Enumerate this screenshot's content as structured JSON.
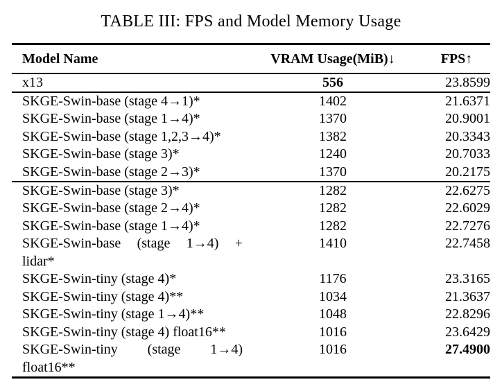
{
  "title": "TABLE III: FPS and Model Memory Usage",
  "header": {
    "model": "Model Name",
    "vram": "VRAM Usage(MiB)↓",
    "fps": "FPS↑"
  },
  "rows": [
    {
      "model": "x13",
      "model2": "",
      "vram": "556",
      "fps": "23.8599",
      "vram_bold": true,
      "fps_bold": false,
      "rule_after": true
    },
    {
      "model": "SKGE-Swin-base (stage 4→1)*",
      "model2": "",
      "vram": "1402",
      "fps": "21.6371",
      "vram_bold": false,
      "fps_bold": false,
      "rule_after": false
    },
    {
      "model": "SKGE-Swin-base (stage 1→4)*",
      "model2": "",
      "vram": "1370",
      "fps": "20.9001",
      "vram_bold": false,
      "fps_bold": false,
      "rule_after": false
    },
    {
      "model": "SKGE-Swin-base (stage 1,2,3→4)*",
      "model2": "",
      "vram": "1382",
      "fps": "20.3343",
      "vram_bold": false,
      "fps_bold": false,
      "rule_after": false
    },
    {
      "model": "SKGE-Swin-base (stage 3)*",
      "model2": "",
      "vram": "1240",
      "fps": "20.7033",
      "vram_bold": false,
      "fps_bold": false,
      "rule_after": false
    },
    {
      "model": "SKGE-Swin-base (stage 2→3)*",
      "model2": "",
      "vram": "1370",
      "fps": "20.2175",
      "vram_bold": false,
      "fps_bold": false,
      "rule_after": true
    },
    {
      "model": "SKGE-Swin-base (stage 3)*",
      "model2": "",
      "vram": "1282",
      "fps": "22.6275",
      "vram_bold": false,
      "fps_bold": false,
      "rule_after": false
    },
    {
      "model": "SKGE-Swin-base (stage 2→4)*",
      "model2": "",
      "vram": "1282",
      "fps": "22.6029",
      "vram_bold": false,
      "fps_bold": false,
      "rule_after": false
    },
    {
      "model": "SKGE-Swin-base (stage 1→4)*",
      "model2": "",
      "vram": "1282",
      "fps": "22.7276",
      "vram_bold": false,
      "fps_bold": false,
      "rule_after": false
    },
    {
      "model": "SKGE-Swin-base (stage 1→4) +",
      "model2": "lidar*",
      "vram": "1410",
      "fps": "22.7458",
      "vram_bold": false,
      "fps_bold": false,
      "rule_after": false
    },
    {
      "model": "SKGE-Swin-tiny (stage 4)*",
      "model2": "",
      "vram": "1176",
      "fps": "23.3165",
      "vram_bold": false,
      "fps_bold": false,
      "rule_after": false
    },
    {
      "model": "SKGE-Swin-tiny (stage 4)**",
      "model2": "",
      "vram": "1034",
      "fps": "21.3637",
      "vram_bold": false,
      "fps_bold": false,
      "rule_after": false
    },
    {
      "model": "SKGE-Swin-tiny (stage 1→4)**",
      "model2": "",
      "vram": "1048",
      "fps": "22.8296",
      "vram_bold": false,
      "fps_bold": false,
      "rule_after": false
    },
    {
      "model": "SKGE-Swin-tiny (stage 4) float16**",
      "model2": "",
      "vram": "1016",
      "fps": "23.6429",
      "vram_bold": false,
      "fps_bold": false,
      "rule_after": false
    },
    {
      "model": "SKGE-Swin-tiny (stage 1→4)",
      "model2": "float16**",
      "vram": "1016",
      "fps": "27.4900",
      "vram_bold": false,
      "fps_bold": true,
      "rule_after": false
    }
  ]
}
